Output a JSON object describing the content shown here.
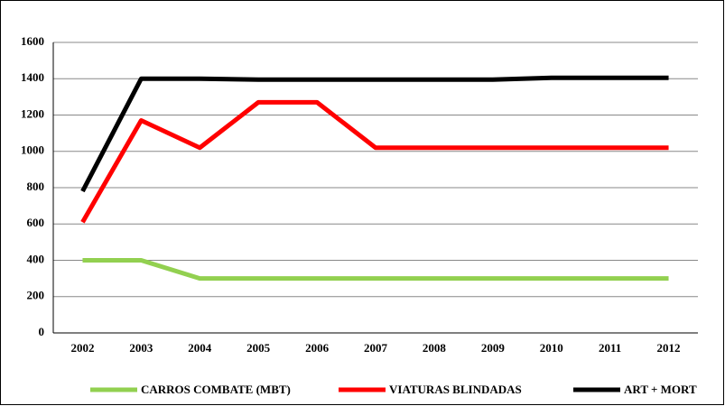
{
  "chart_data": {
    "type": "line",
    "categories": [
      "2002",
      "2003",
      "2004",
      "2005",
      "2006",
      "2007",
      "2008",
      "2009",
      "2010",
      "2011",
      "2012"
    ],
    "series": [
      {
        "name": "CARROS COMBATE (MBT)",
        "color": "#92d050",
        "values": [
          400,
          400,
          300,
          300,
          300,
          300,
          300,
          300,
          300,
          300,
          300
        ]
      },
      {
        "name": "VIATURAS BLINDADAS",
        "color": "#ff0000",
        "values": [
          610,
          1170,
          1020,
          1270,
          1270,
          1020,
          1020,
          1020,
          1020,
          1020,
          1020
        ]
      },
      {
        "name": "ART + MORT",
        "color": "#000000",
        "values": [
          780,
          1400,
          1400,
          1395,
          1395,
          1395,
          1395,
          1395,
          1405,
          1405,
          1405
        ]
      }
    ],
    "ylim": [
      0,
      1600
    ],
    "yticks": [
      0,
      200,
      400,
      600,
      800,
      1000,
      1200,
      1400,
      1600
    ],
    "grid": true,
    "legend": "bottom"
  }
}
